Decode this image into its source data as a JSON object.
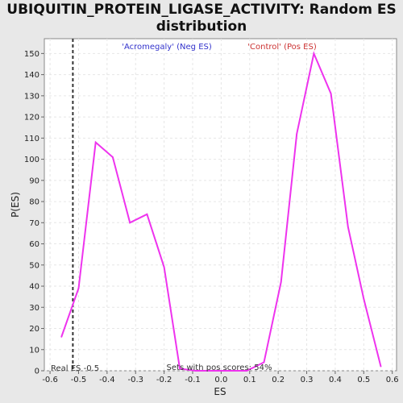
{
  "chart_data": {
    "type": "line",
    "title_line1": "UBIQUITIN_PROTEIN_LIGASE_ACTIVITY: Random ES",
    "title_line2": "distribution",
    "xlabel": "ES",
    "ylabel": "P(ES)",
    "xlim": [
      -0.62,
      0.615
    ],
    "ylim": [
      0,
      157
    ],
    "x_ticks": [
      "-0.6",
      "-0.5",
      "-0.4",
      "-0.3",
      "-0.2",
      "-0.1",
      "0.0",
      "0.1",
      "0.2",
      "0.3",
      "0.4",
      "0.5",
      "0.6"
    ],
    "y_ticks": [
      "0",
      "10",
      "20",
      "30",
      "40",
      "50",
      "60",
      "70",
      "80",
      "90",
      "100",
      "110",
      "120",
      "130",
      "140",
      "150"
    ],
    "grid": true,
    "series": [
      {
        "color": "#ee33ee",
        "x": [
          -0.56,
          -0.5,
          -0.44,
          -0.38,
          -0.32,
          -0.26,
          -0.2,
          -0.145,
          -0.09,
          -0.03,
          0.03,
          0.09,
          0.15,
          0.21,
          0.265,
          0.325,
          0.385,
          0.445,
          0.5,
          0.56
        ],
        "y": [
          16,
          39,
          108,
          101,
          70,
          74,
          49,
          1,
          0,
          0,
          0,
          0,
          4,
          42,
          112,
          150,
          131,
          68,
          34,
          2
        ]
      }
    ],
    "real_es": -0.52,
    "annotations": {
      "neg_label": "'Acromegaly' (Neg ES)",
      "neg_color": "#3333cc",
      "pos_label": "'Control' (Pos ES)",
      "pos_color": "#cc3333",
      "real_es_text": "Real ES -0.5",
      "pos_scores_text": "Sets with pos scores: 54%"
    }
  }
}
